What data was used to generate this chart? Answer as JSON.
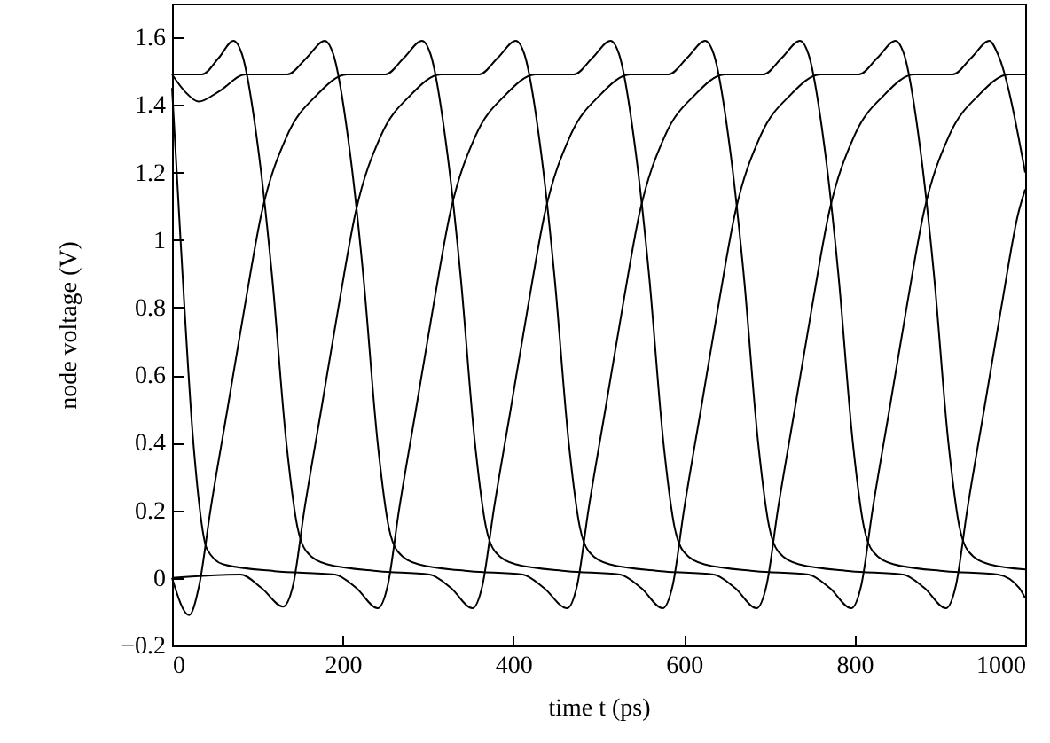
{
  "chart_data": {
    "type": "line",
    "xlabel": "time t (ps)",
    "ylabel": "node voltage (V)",
    "xlim": [
      0,
      1000
    ],
    "xticks": [
      0,
      200,
      400,
      600,
      800,
      1000
    ],
    "ylim": [
      -0.2,
      1.7
    ],
    "yticks": [
      {
        "value": -0.2,
        "label": "−0.2"
      },
      0,
      0.2,
      0.4,
      0.6,
      0.8,
      1,
      1.2,
      1.4,
      1.6
    ],
    "grid": false,
    "marker": "none",
    "line_style": "solid",
    "series": [
      {
        "color": "#000000",
        "x": [
          0,
          15,
          31,
          55,
          86,
          135,
          158,
          179,
          189,
          209,
          224,
          241,
          254,
          264,
          289,
          349,
          411,
          436,
          463,
          475,
          488,
          508,
          528,
          548,
          578,
          613,
          648,
          693,
          715,
          736,
          746,
          766,
          781,
          798,
          811,
          821,
          846,
          906,
          968,
          993,
          1000
        ],
        "values": [
          1.49,
          1.44,
          1.41,
          1.44,
          1.49,
          1.49,
          1.54,
          1.59,
          1.55,
          1.25,
          0.9,
          0.4,
          0.15,
          0.08,
          0.04,
          0.02,
          0.01,
          -0.03,
          -0.09,
          -0.02,
          0.2,
          0.5,
          0.8,
          1.08,
          1.31,
          1.43,
          1.49,
          1.49,
          1.54,
          1.59,
          1.55,
          1.25,
          0.9,
          0.4,
          0.15,
          0.08,
          0.04,
          0.02,
          0.01,
          -0.03,
          -0.06
        ]
      },
      {
        "color": "#000000",
        "x": [
          0,
          35,
          55,
          72,
          82,
          102,
          117,
          134,
          147,
          157,
          182,
          242,
          302,
          327,
          352,
          364,
          377,
          397,
          417,
          437,
          467,
          502,
          537,
          582,
          604,
          625,
          635,
          655,
          670,
          687,
          700,
          710,
          735,
          795,
          857,
          882,
          907,
          919,
          932,
          952,
          972,
          992,
          1000
        ],
        "values": [
          1.49,
          1.49,
          1.54,
          1.59,
          1.55,
          1.25,
          0.9,
          0.4,
          0.15,
          0.08,
          0.04,
          0.02,
          0.01,
          -0.03,
          -0.09,
          -0.02,
          0.2,
          0.5,
          0.8,
          1.08,
          1.31,
          1.43,
          1.49,
          1.49,
          1.54,
          1.59,
          1.55,
          1.25,
          0.9,
          0.4,
          0.15,
          0.08,
          0.04,
          0.02,
          0.01,
          -0.03,
          -0.09,
          -0.02,
          0.2,
          0.5,
          0.8,
          1.08,
          1.15
        ]
      },
      {
        "color": "#000000",
        "x": [
          0,
          20,
          32,
          45,
          65,
          85,
          105,
          135,
          170,
          205,
          250,
          272,
          293,
          303,
          323,
          338,
          355,
          368,
          378,
          403,
          463,
          525,
          550,
          575,
          587,
          600,
          620,
          640,
          660,
          690,
          725,
          760,
          805,
          827,
          848,
          858,
          878,
          893,
          910,
          923,
          933,
          958,
          1000
        ],
        "values": [
          0.0,
          -0.11,
          -0.02,
          0.2,
          0.5,
          0.8,
          1.08,
          1.31,
          1.43,
          1.49,
          1.49,
          1.54,
          1.59,
          1.55,
          1.25,
          0.9,
          0.4,
          0.15,
          0.08,
          0.04,
          0.02,
          0.01,
          -0.03,
          -0.09,
          -0.02,
          0.2,
          0.5,
          0.8,
          1.08,
          1.31,
          1.43,
          1.49,
          1.49,
          1.54,
          1.59,
          1.55,
          1.25,
          0.9,
          0.4,
          0.15,
          0.08,
          0.04,
          0.025
        ]
      },
      {
        "color": "#000000",
        "x": [
          0,
          80,
          105,
          130,
          142,
          155,
          175,
          195,
          215,
          245,
          280,
          315,
          360,
          382,
          403,
          413,
          433,
          448,
          465,
          478,
          488,
          513,
          573,
          635,
          660,
          685,
          697,
          710,
          730,
          750,
          770,
          800,
          835,
          870,
          915,
          937,
          958,
          968,
          1000
        ],
        "values": [
          0.0,
          0.01,
          -0.03,
          -0.085,
          -0.02,
          0.2,
          0.5,
          0.8,
          1.08,
          1.31,
          1.43,
          1.49,
          1.49,
          1.54,
          1.59,
          1.55,
          1.25,
          0.9,
          0.4,
          0.15,
          0.08,
          0.04,
          0.02,
          0.01,
          -0.03,
          -0.09,
          -0.02,
          0.2,
          0.5,
          0.8,
          1.08,
          1.31,
          1.43,
          1.49,
          1.49,
          1.54,
          1.59,
          1.55,
          1.2
        ]
      },
      {
        "color": "#000000",
        "x": [
          0,
          10,
          25,
          41,
          60,
          120,
          191,
          216,
          241,
          253,
          266,
          286,
          306,
          326,
          356,
          391,
          426,
          471,
          493,
          514,
          524,
          544,
          559,
          576,
          589,
          599,
          624,
          684,
          746,
          771,
          796,
          808,
          821,
          841,
          861,
          881,
          911,
          946,
          981,
          1000
        ],
        "values": [
          1.45,
          1.0,
          0.4,
          0.085,
          0.04,
          0.02,
          0.01,
          -0.03,
          -0.09,
          -0.02,
          0.2,
          0.5,
          0.8,
          1.08,
          1.31,
          1.43,
          1.49,
          1.49,
          1.54,
          1.59,
          1.55,
          1.25,
          0.9,
          0.4,
          0.15,
          0.08,
          0.04,
          0.02,
          0.01,
          -0.03,
          -0.09,
          -0.02,
          0.2,
          0.5,
          0.8,
          1.08,
          1.31,
          1.43,
          1.49,
          1.49
        ]
      }
    ]
  }
}
